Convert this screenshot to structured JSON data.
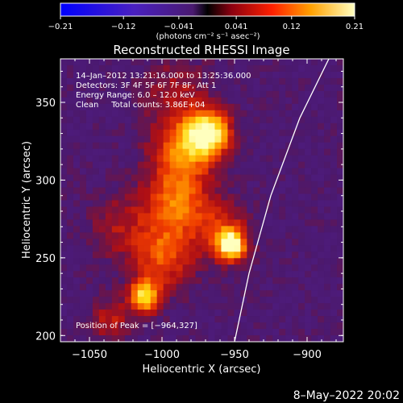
{
  "chart_data": {
    "type": "heatmap",
    "title": "Reconstructed RHESSI Image",
    "xlabel": "Heliocentric X (arcsec)",
    "ylabel": "Heliocentric Y (arcsec)",
    "xlim": [
      -1070,
      -875
    ],
    "ylim": [
      196,
      378
    ],
    "x_ticks": [
      -1050,
      -1000,
      -950,
      -900
    ],
    "y_ticks": [
      200,
      250,
      300,
      350
    ],
    "x_tick_labels": [
      "−1050",
      "−1000",
      "−950",
      "−900"
    ],
    "y_tick_labels": [
      "200",
      "250",
      "300",
      "350"
    ],
    "colorbar": {
      "label": "(photons cm⁻² s⁻¹ asec⁻²)",
      "range": [
        -0.21,
        0.21
      ],
      "ticks": [
        -0.21,
        -0.12,
        -0.041,
        0.041,
        0.12,
        0.21
      ],
      "tick_labels": [
        "−0.21",
        "−0.12",
        "−0.041",
        "0.041",
        "0.12",
        "0.21"
      ]
    },
    "annotations": [
      "14–Jan–2012 13:21:16.000 to 13:25:36.000",
      "Detectors: 3F 4F 5F 6F 7F 8F, Att 1",
      "Energy Range: 6.0 – 12.0 keV",
      "Clean     Total counts: 3.86E+04"
    ],
    "peak_label": "Position of Peak = [−964,327]",
    "peak_position": [
      -964,
      327
    ],
    "sources": [
      {
        "x": -968,
        "y": 330,
        "sigma": 10,
        "amp": 0.21
      },
      {
        "x": -985,
        "y": 320,
        "sigma": 14,
        "amp": 0.12
      },
      {
        "x": -952,
        "y": 258,
        "sigma": 6,
        "amp": 0.21
      },
      {
        "x": -958,
        "y": 265,
        "sigma": 12,
        "amp": 0.09
      },
      {
        "x": -1012,
        "y": 225,
        "sigma": 7,
        "amp": 0.18
      },
      {
        "x": -990,
        "y": 285,
        "sigma": 16,
        "amp": 0.12
      },
      {
        "x": -1000,
        "y": 250,
        "sigma": 14,
        "amp": 0.1
      },
      {
        "x": -1030,
        "y": 270,
        "sigma": 14,
        "amp": 0.05
      },
      {
        "x": -990,
        "y": 355,
        "sigma": 16,
        "amp": 0.05
      },
      {
        "x": -1035,
        "y": 210,
        "sigma": 10,
        "amp": 0.06
      }
    ],
    "limb_curve": [
      [
        -950,
        196
      ],
      [
        -940,
        240
      ],
      [
        -925,
        290
      ],
      [
        -905,
        340
      ],
      [
        -885,
        378
      ]
    ]
  },
  "footer_date": "8–May–2022 20:02"
}
